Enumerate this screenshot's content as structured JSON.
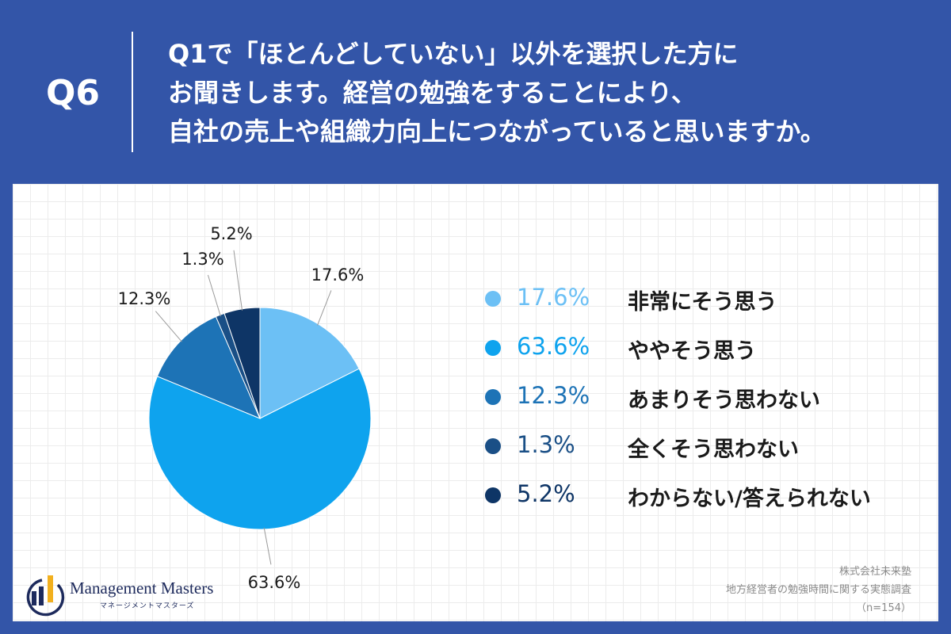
{
  "header": {
    "question_number": "Q6",
    "question_lines": [
      "Q1で「ほとんどしていない」以外を選択した方に",
      "お聞きします。経営の勉強をすることにより、",
      "自社の売上や組織力向上につながっていると思いますか。"
    ]
  },
  "chart_data": {
    "type": "pie",
    "categories": [
      "非常にそう思う",
      "ややそう思う",
      "あまりそう思わない",
      "全くそう思わない",
      "わからない/答えられない"
    ],
    "values": [
      17.6,
      63.6,
      12.3,
      1.3,
      5.2
    ],
    "value_labels": [
      "17.6%",
      "63.6%",
      "12.3%",
      "1.3%",
      "5.2%"
    ],
    "colors": [
      "#6cc0f5",
      "#0ea3ee",
      "#1d73b6",
      "#1a4f86",
      "#0e3566"
    ],
    "start": "12 o'clock, clockwise",
    "legend_position": "right"
  },
  "legend": {
    "items": [
      {
        "value": "17.6%",
        "label": "非常にそう思う",
        "color": "#6cc0f5"
      },
      {
        "value": "63.6%",
        "label": "ややそう思う",
        "color": "#0ea3ee"
      },
      {
        "value": "12.3%",
        "label": "あまりそう思わない",
        "color": "#1d73b6"
      },
      {
        "value": "1.3%",
        "label": "全くそう思わない",
        "color": "#1a4f86"
      },
      {
        "value": "5.2%",
        "label": "わからない/答えられない",
        "color": "#0e3566"
      }
    ]
  },
  "logo": {
    "name": "Management Masters",
    "subtitle": "マネージメントマスターズ"
  },
  "source": {
    "company": "株式会社未来塾",
    "survey": "地方経営者の勉強時間に関する実態調査",
    "sample": "（n=154）"
  },
  "colors": {
    "background": "#3355a8",
    "card": "#ffffff",
    "logo_blue": "#1d2a5c",
    "logo_gold": "#f2b01e"
  }
}
